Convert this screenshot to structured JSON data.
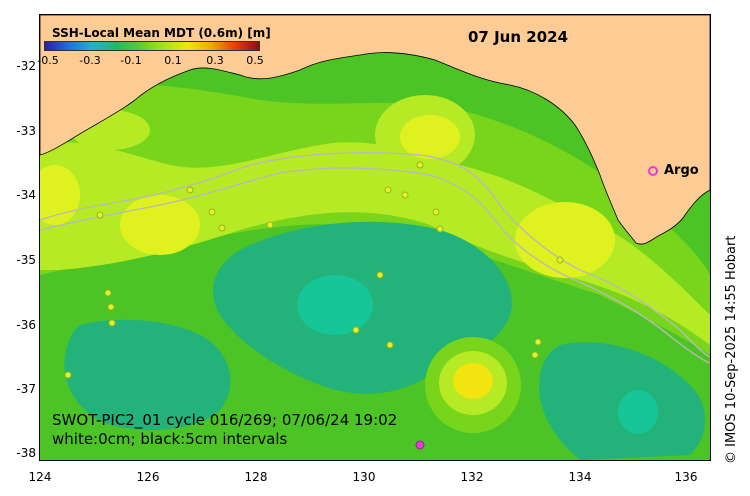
{
  "map": {
    "date": "07 Jun 2024",
    "cycle_info": "SWOT-PIC2_01 cycle 016/269; 07/06/24 19:02",
    "contour_info": "white:0cm; black:5cm intervals",
    "credit": "© IMOS 10-Sep-2025 14:55 Hobart",
    "argo_label": "Argo",
    "colorbar": {
      "title": "SSH-Local Mean MDT (0.6m) [m]",
      "ticks": [
        "-0.5",
        "-0.3",
        "-0.1",
        "0.1",
        "0.3",
        "0.5"
      ],
      "colors": [
        "#2a1ca8",
        "#1f6fe0",
        "#18b8c8",
        "#1fb86a",
        "#5ccd2c",
        "#a8e021",
        "#f0e614",
        "#f4a40c",
        "#e0400c",
        "#8a1010"
      ]
    },
    "y_ticks": [
      "-32",
      "-33",
      "-34",
      "-35",
      "-36",
      "-37",
      "-38"
    ],
    "x_ticks": [
      "124",
      "126",
      "128",
      "130",
      "132",
      "134",
      "136"
    ],
    "colors": {
      "land": "#fccc94",
      "ocean_base": "#4dc425",
      "ssh_low": "#22b27a",
      "ssh_lowest": "#16c699",
      "ssh_mid": "#78d51c",
      "ssh_high": "#b6ea24",
      "ssh_peak": "#dff21f",
      "ssh_hot": "#f2e40e",
      "argo": "#e43bd9"
    }
  }
}
